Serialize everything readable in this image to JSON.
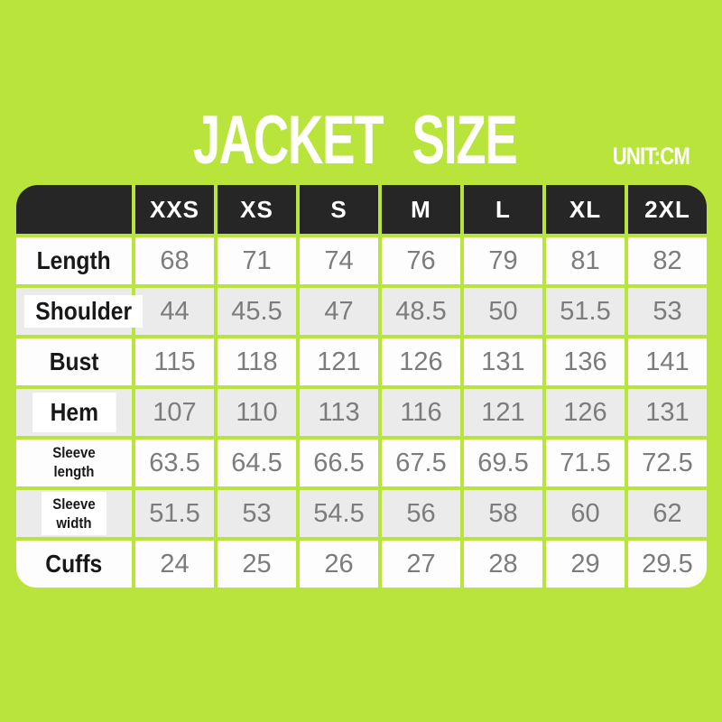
{
  "page": {
    "title": "JACKET SIZE",
    "unit_label": "UNIT:CM"
  },
  "colors": {
    "background_green": "#b9e43c",
    "grid_green": "#a9df30",
    "header_dark": "#262626",
    "header_text": "#ffffff",
    "row_white": "#fdfdfd",
    "row_gray": "#ebebeb",
    "label_text": "#181818",
    "value_text": "#7c7c7c"
  },
  "chart_data": {
    "type": "table",
    "title": "JACKET SIZE",
    "unit": "CM",
    "columns": [
      "XXS",
      "XS",
      "S",
      "M",
      "L",
      "XL",
      "2XL"
    ],
    "rows": [
      {
        "label": "Length",
        "values": [
          68,
          71,
          74,
          76,
          79,
          81,
          82
        ]
      },
      {
        "label": "Shoulder",
        "values": [
          44,
          45.5,
          47,
          48.5,
          50,
          51.5,
          53
        ]
      },
      {
        "label": "Bust",
        "values": [
          115,
          118,
          121,
          126,
          131,
          136,
          141
        ]
      },
      {
        "label": "Hem",
        "values": [
          107,
          110,
          113,
          116,
          121,
          126,
          131
        ]
      },
      {
        "label": "Sleeve\nlength",
        "values": [
          63.5,
          64.5,
          66.5,
          67.5,
          69.5,
          71.5,
          72.5
        ]
      },
      {
        "label": "Sleeve\nwidth",
        "values": [
          51.5,
          53,
          54.5,
          56,
          58,
          60,
          62
        ]
      },
      {
        "label": "Cuffs",
        "values": [
          24,
          25,
          26,
          27,
          28,
          29,
          29.5
        ]
      }
    ]
  }
}
